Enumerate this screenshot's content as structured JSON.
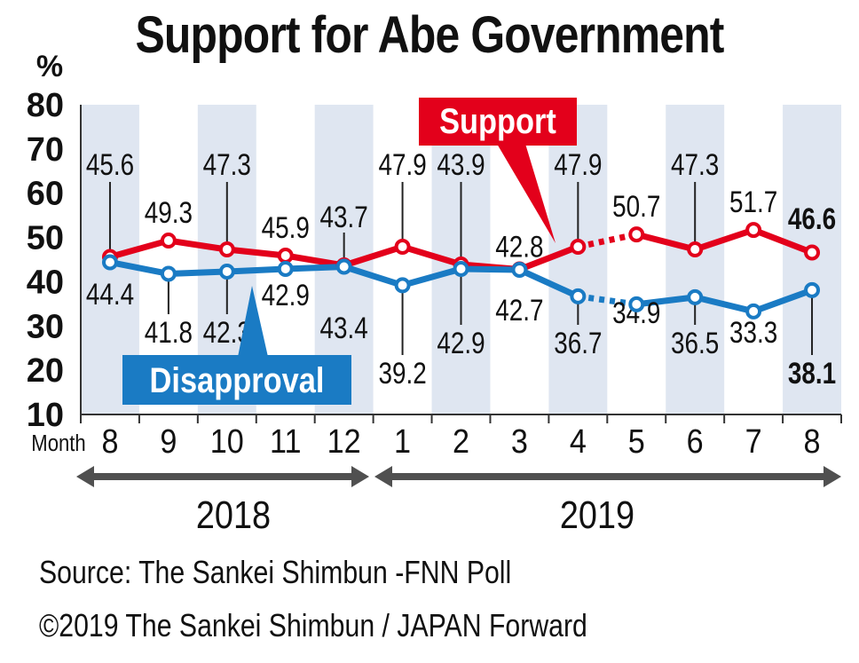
{
  "title": "Support for Abe Government",
  "source": "Source: The Sankei Shimbun -FNN Poll",
  "copyright": "©2019 The Sankei Shimbun / JAPAN Forward",
  "colors": {
    "support": "#e3001b",
    "disapproval": "#1a7bc4",
    "band": "#dfe6f1",
    "arrow": "#505050"
  },
  "chart_data": {
    "type": "line",
    "title": "Support for Abe Government",
    "ylabel": "%",
    "xlabel": "Month",
    "ylim": [
      10,
      80
    ],
    "yticks": [
      "80",
      "70",
      "60",
      "50",
      "40",
      "30",
      "20",
      "10"
    ],
    "categories": [
      "8",
      "9",
      "10",
      "11",
      "12",
      "1",
      "2",
      "3",
      "4",
      "5",
      "6",
      "7",
      "8"
    ],
    "years": [
      {
        "label": "2018",
        "from": 0,
        "to": 4
      },
      {
        "label": "2019",
        "from": 5,
        "to": 12
      }
    ],
    "gap_after_index": 8,
    "series": [
      {
        "name": "Support",
        "values": [
          45.6,
          49.3,
          47.3,
          45.9,
          43.7,
          47.9,
          43.9,
          42.8,
          47.9,
          50.7,
          47.3,
          51.7,
          46.6
        ],
        "labels": [
          "45.6",
          "49.3",
          "47.3",
          "45.9",
          "43.7",
          "47.9",
          "43.9",
          "42.8",
          "47.9",
          "50.7",
          "47.3",
          "51.7",
          "46.6"
        ]
      },
      {
        "name": "Disapproval",
        "values": [
          44.4,
          41.8,
          42.3,
          42.9,
          43.4,
          39.2,
          42.9,
          42.7,
          36.7,
          34.9,
          36.5,
          33.3,
          38.1
        ],
        "labels": [
          "44.4",
          "41.8",
          "42.3",
          "42.9",
          "43.4",
          "39.2",
          "42.9",
          "42.7",
          "36.7",
          "34.9",
          "36.5",
          "33.3",
          "38.1"
        ]
      }
    ],
    "grid": false,
    "alternating_bands": true
  }
}
